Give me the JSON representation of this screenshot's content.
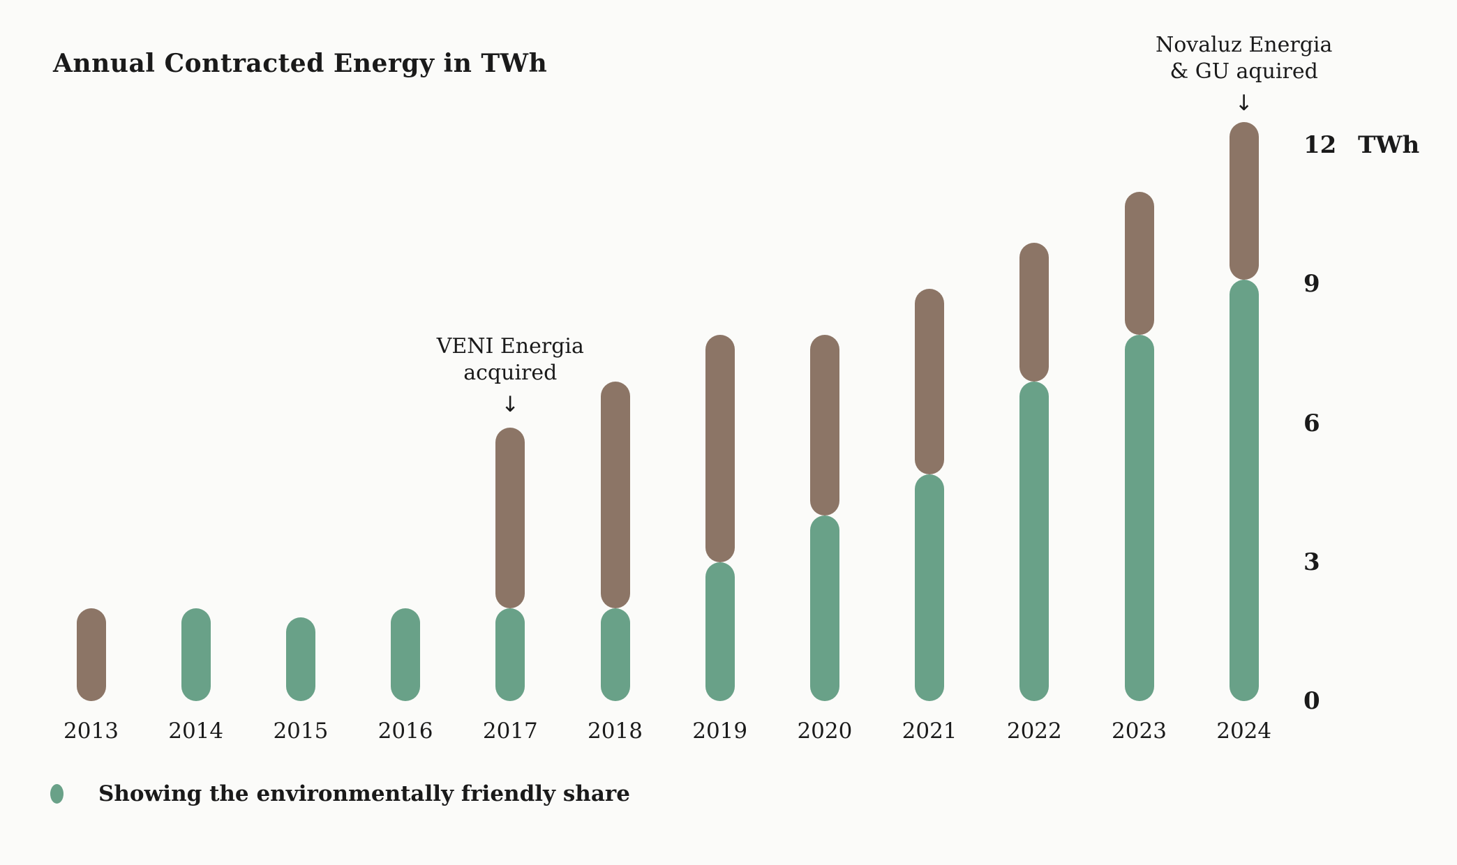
{
  "chart": {
    "title": "Annual Contracted Energy in TWh"
  },
  "chart_data": {
    "type": "bar",
    "stacked": true,
    "title": "Annual Contracted Energy in TWh",
    "categories": [
      "2013",
      "2014",
      "2015",
      "2016",
      "2017",
      "2018",
      "2019",
      "2020",
      "2021",
      "2022",
      "2023",
      "2024"
    ],
    "series": [
      {
        "id": "green",
        "legend_label": "Showing the environmentally friendly share",
        "color": "#69a188",
        "values": [
          0,
          2.0,
          1.8,
          2.0,
          2.0,
          2.0,
          3.0,
          4.0,
          4.9,
          6.9,
          7.9,
          9.1
        ]
      },
      {
        "id": "brown",
        "color": "#8c7566",
        "values": [
          2.0,
          0,
          0,
          0,
          3.9,
          4.9,
          4.9,
          3.9,
          4.0,
          3.0,
          3.1,
          3.4
        ]
      }
    ],
    "totals": [
      2.0,
      2.0,
      1.8,
      2.0,
      5.9,
      6.9,
      7.9,
      7.9,
      8.9,
      9.9,
      11.0,
      12.5
    ],
    "y_axis": {
      "ticks": [
        "0",
        "3",
        "6",
        "9",
        "12"
      ],
      "tick_values": [
        0,
        3,
        6,
        9,
        12
      ],
      "label": "TWh",
      "side": "right",
      "range": [
        0,
        12.5
      ]
    },
    "grid": false,
    "legend": {
      "marker": "green-dot",
      "label": "Showing the environmentally friendly share",
      "position": "bottom-left"
    },
    "annotations": [
      {
        "target_year": "2017",
        "line1": "VENI Energia",
        "line2": "acquired",
        "arrow": "↓"
      },
      {
        "target_year": "2024",
        "line1": "Novaluz Energia",
        "line2": "& GU aquired",
        "arrow": "↓"
      }
    ],
    "colors": {
      "green": "#69a188",
      "brown": "#8c7566",
      "background": "#fbfbf9",
      "text": "#1a1a1a"
    }
  }
}
